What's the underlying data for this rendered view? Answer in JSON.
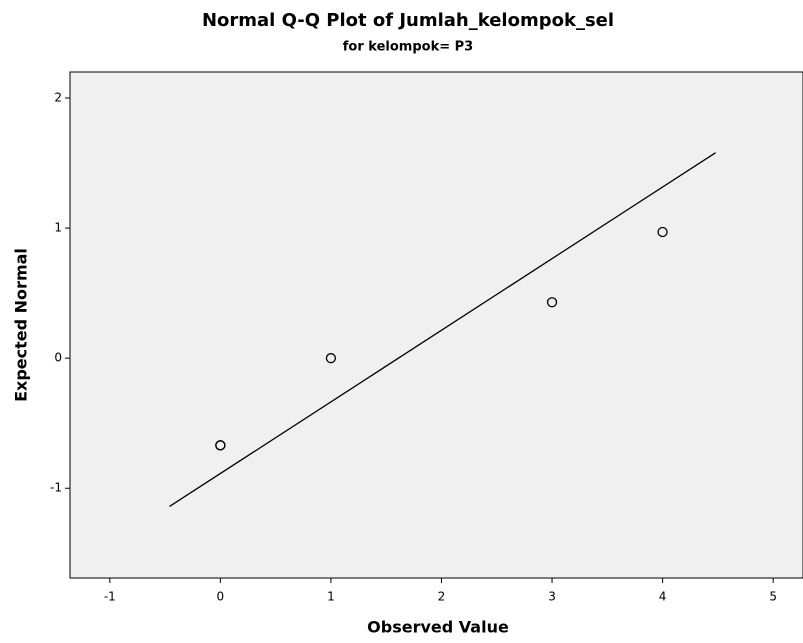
{
  "chart_data": {
    "type": "scatter",
    "title": "Normal Q-Q Plot of Jumlah_kelompok_sel",
    "subtitle": "for kelompok= P3",
    "x_label": "Observed Value",
    "y_label": "Expected Normal",
    "x": [
      0,
      0,
      1,
      3,
      4
    ],
    "values": [
      -0.67,
      -0.67,
      0,
      0.43,
      0.97
    ],
    "color": "#000000",
    "reference_line": {
      "x": [
        -0.46,
        4.48
      ],
      "y": [
        -1.14,
        1.58
      ]
    },
    "xlim": [
      -1.36,
      5.27
    ],
    "ylim": [
      -1.69,
      2.2
    ],
    "xticks": [
      -1,
      0,
      1,
      2,
      3,
      4,
      5
    ],
    "yticks": [
      -1,
      0,
      1,
      2
    ],
    "grid": false
  }
}
